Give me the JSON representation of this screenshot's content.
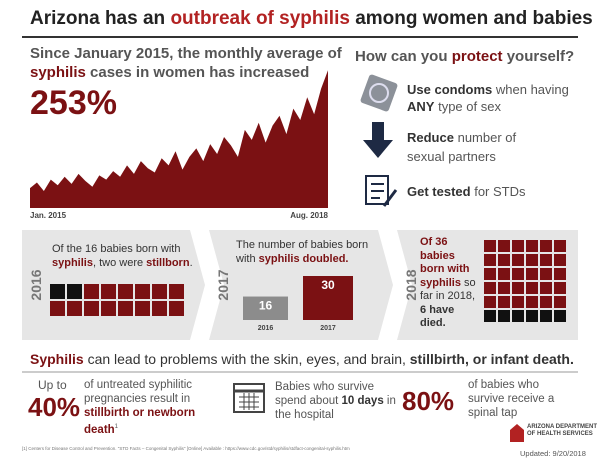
{
  "title": [
    "Arizona has an",
    "outbreak of syphilis",
    "among women and babies"
  ],
  "trend": {
    "line1": "Since January 2015, the monthly average of",
    "line2a": "syphilis",
    "line2b": "cases in women has increased",
    "figure": "253%"
  },
  "protect": {
    "q1": "How can you",
    "q2": "protect",
    "q3": "yourself?",
    "items": [
      [
        "Use condoms",
        "when having",
        "ANY",
        "type of sex"
      ],
      [
        "Reduce",
        "number of sexual partners"
      ],
      [
        "Get tested",
        "for STDs"
      ]
    ]
  },
  "chart_data": [
    {
      "type": "area",
      "color": "#7b1113",
      "ylim": [
        0,
        100
      ],
      "x": [
        "Jan. 2015",
        null,
        null,
        null,
        null,
        null,
        null,
        null,
        null,
        null,
        null,
        null,
        null,
        null,
        null,
        null,
        null,
        null,
        null,
        null,
        null,
        null,
        null,
        null,
        null,
        null,
        null,
        null,
        null,
        null,
        null,
        null,
        null,
        null,
        null,
        null,
        null,
        null,
        null,
        null,
        null,
        null,
        null,
        "Aug. 2018"
      ],
      "values": [
        14,
        18,
        12,
        20,
        16,
        22,
        17,
        24,
        19,
        15,
        23,
        20,
        26,
        22,
        30,
        24,
        33,
        28,
        25,
        35,
        30,
        40,
        27,
        36,
        42,
        33,
        45,
        38,
        50,
        44,
        36,
        55,
        48,
        60,
        46,
        58,
        65,
        52,
        70,
        62,
        78,
        66,
        84,
        97
      ]
    },
    {
      "type": "bar",
      "categories": [
        "2016",
        "2017"
      ],
      "values": [
        16,
        30
      ],
      "colors": [
        "#8c8c8c",
        "#7b1113"
      ],
      "ylim": [
        0,
        30
      ]
    }
  ],
  "panels": [
    {
      "year": "2016",
      "a": "Of the",
      "total": 16,
      "b": "babies born with",
      "c": "syphilis",
      "d": ", two were",
      "e": "stillborn",
      "f": ".",
      "stillborn": 2
    },
    {
      "year": "2017",
      "a": "The number of babies born",
      "b": "with",
      "c": "syphilis doubled."
    },
    {
      "year": "2018",
      "a": "Of",
      "total": 36,
      "b": "babies born with syphilis",
      "c": "so far in 2018,",
      "died": 6,
      "d": "have died."
    }
  ],
  "outcomes": {
    "a": "Syphilis",
    "b": "can lead to problems with the skin, eyes, and brain,",
    "c": "stillbirth, or infant death.",
    "stat1": {
      "pre": "Up to",
      "figure": "40%",
      "a": "of untreated syphilitic pregnancies result in",
      "b": "stillbirth",
      "c": "or",
      "d": "newborn death",
      "e": "1"
    },
    "stat2": {
      "a": "Babies who survive spend about",
      "b": "10 days",
      "c": "in the hospital"
    },
    "stat3": {
      "figure": "80%",
      "a": "of babies who survive receive a spinal tap"
    }
  },
  "footer": {
    "note": "[1] Centers for Disease Control and Prevention. \"STD Facts – Congenital Syphilis\" [Online] Available : https://www.cdc.gov/std/syphilis/stdfact-congenital-syphilis.htm",
    "org": [
      "ARIZONA DEPARTMENT",
      "OF HEALTH SERVICES"
    ],
    "updated": "Updated: 9/20/2018"
  }
}
